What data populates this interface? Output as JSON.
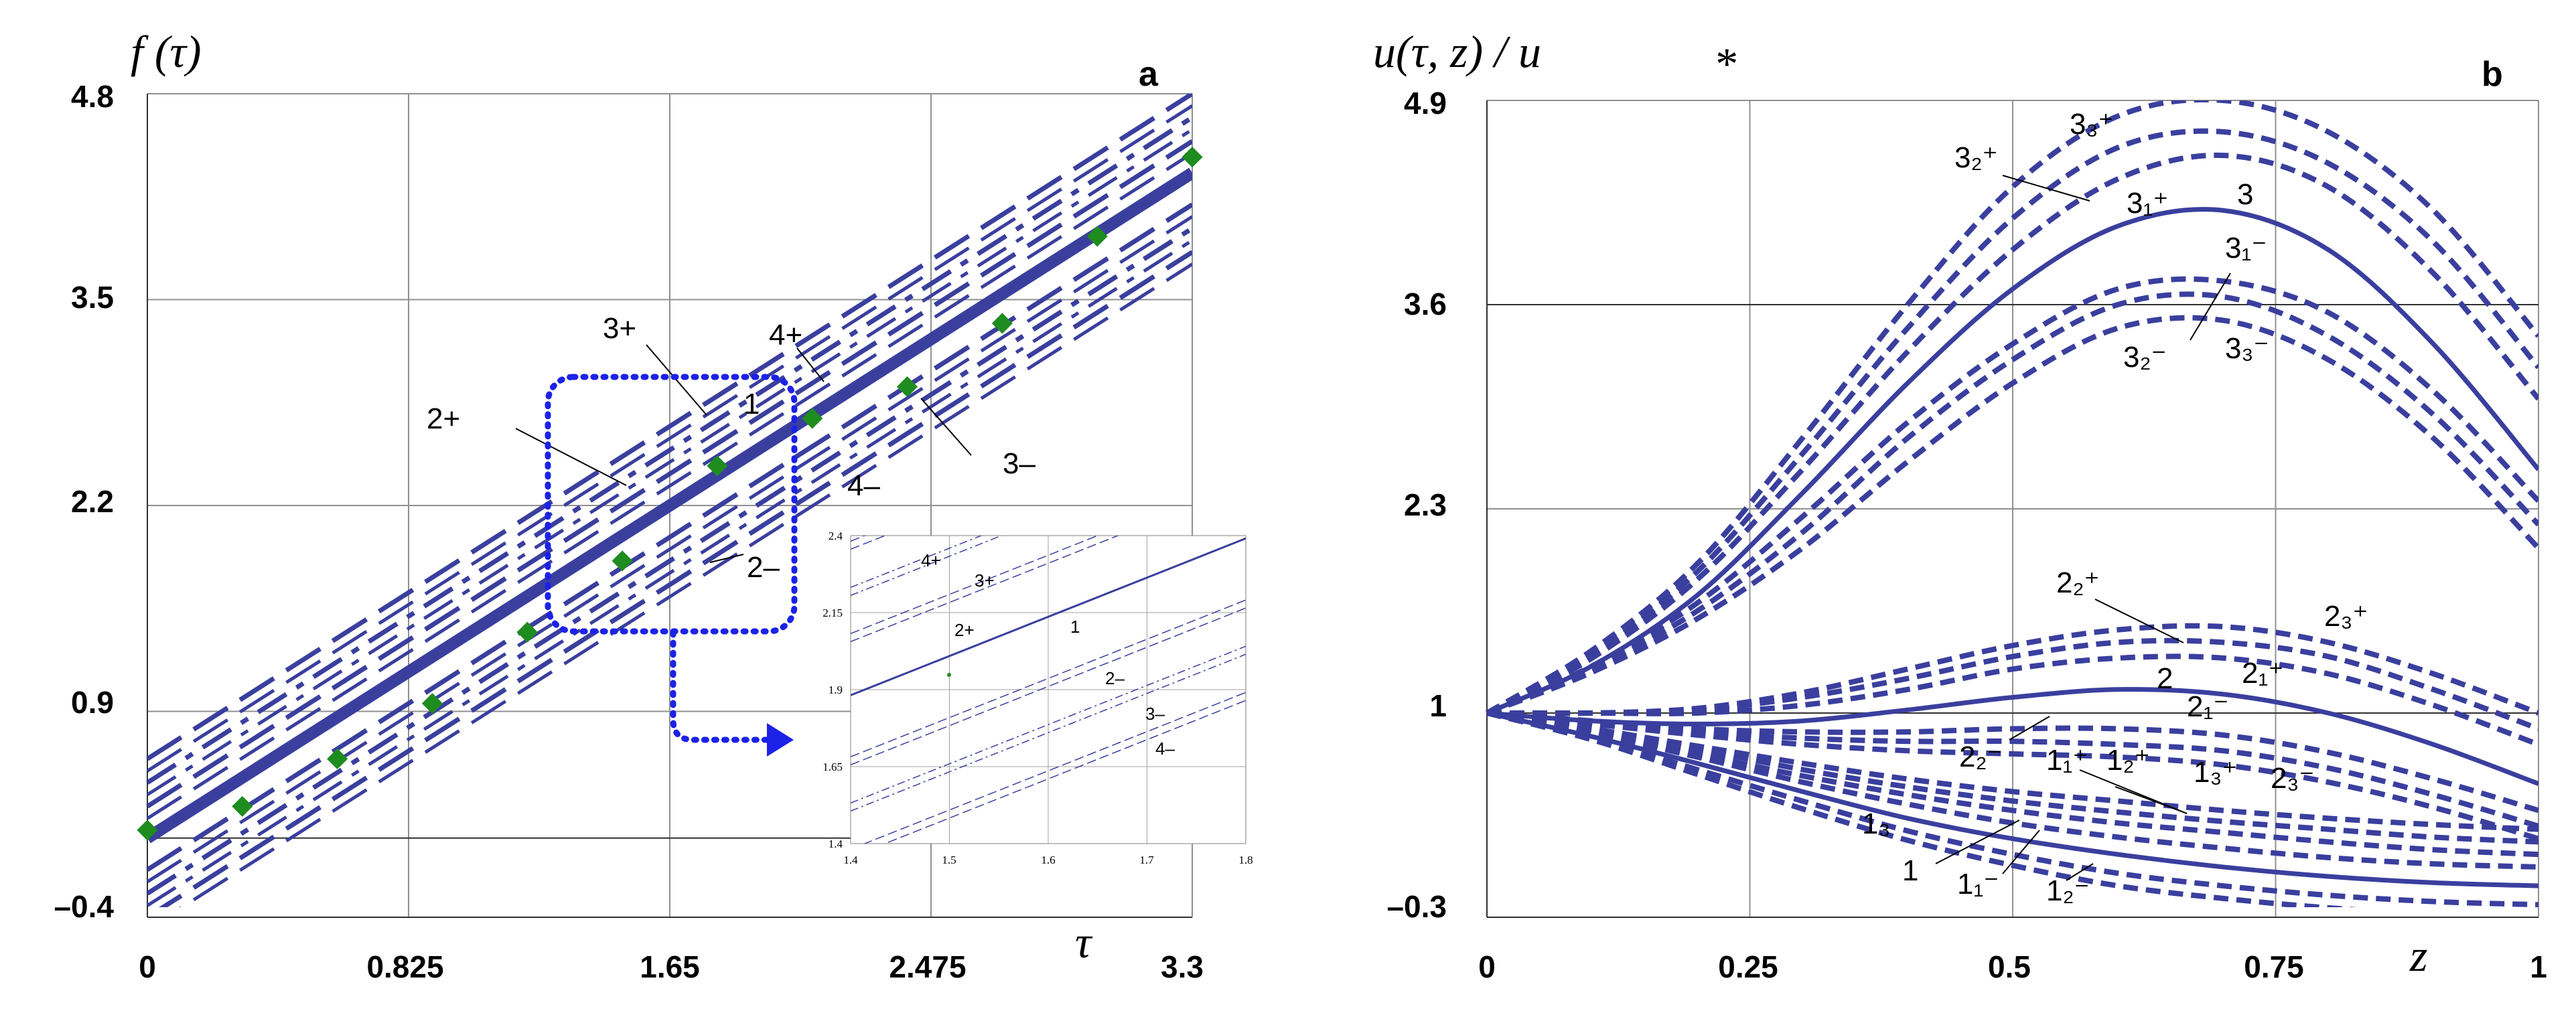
{
  "chart_data": [
    {
      "panel_label": "a",
      "type": "line",
      "title": "f (τ)",
      "xlabel": "τ",
      "x_ticks": [
        "0",
        "0.825",
        "1.65",
        "2.475",
        "3.3"
      ],
      "y_ticks": [
        "–0.4",
        "0.9",
        "2.2",
        "3.5",
        "4.8"
      ],
      "xlim": [
        0,
        3.3
      ],
      "ylim": [
        -0.4,
        4.8
      ],
      "grid": true,
      "series": [
        {
          "name": "1",
          "style": "solid-thick",
          "x": [
            0,
            3.3
          ],
          "y": [
            0.1,
            4.3
          ]
        },
        {
          "name": "2+",
          "style": "dashed",
          "x": [
            0,
            3.3
          ],
          "y": [
            0.3,
            4.5
          ]
        },
        {
          "name": "3+",
          "style": "dashdot",
          "x": [
            0,
            3.3
          ],
          "y": [
            0.45,
            4.65
          ]
        },
        {
          "name": "4+",
          "style": "dashed",
          "x": [
            0,
            3.3
          ],
          "y": [
            0.6,
            4.8
          ]
        },
        {
          "name": "2–",
          "style": "dashed",
          "x": [
            0,
            3.3
          ],
          "y": [
            -0.1,
            4.1
          ]
        },
        {
          "name": "3–",
          "style": "dashdot",
          "x": [
            0,
            3.3
          ],
          "y": [
            -0.25,
            3.95
          ]
        },
        {
          "name": "4–",
          "style": "dashed",
          "x": [
            0,
            3.3
          ],
          "y": [
            -0.4,
            3.8
          ]
        },
        {
          "name": "",
          "style": "markers",
          "x": [
            0,
            0.3,
            0.6,
            0.9,
            1.2,
            1.5,
            1.8,
            2.1,
            2.4,
            2.7,
            3.0,
            3.3
          ],
          "y": [
            0.15,
            0.3,
            0.6,
            0.95,
            1.4,
            1.85,
            2.45,
            2.75,
            2.95,
            3.35,
            3.9,
            4.4
          ]
        }
      ],
      "annotations": [
        "1",
        "2+",
        "3+",
        "4+",
        "2–",
        "3–",
        "4–"
      ],
      "inset": {
        "x_ticks": [
          "1.4",
          "1.5",
          "1.6",
          "1.7",
          "1.8"
        ],
        "y_ticks": [
          "1.4",
          "1.65",
          "1.9",
          "2.15",
          "2.4"
        ],
        "xlim": [
          1.4,
          1.8
        ],
        "ylim": [
          1.4,
          2.4
        ],
        "labels": [
          "4+",
          "3+",
          "2+",
          "1",
          "2–",
          "3–",
          "4–"
        ]
      }
    },
    {
      "panel_label": "b",
      "type": "line",
      "title": "u(τ, z) / u",
      "title_subscript": "*",
      "xlabel": "z",
      "x_ticks": [
        "0",
        "0.25",
        "0.5",
        "0.75",
        "1"
      ],
      "y_ticks": [
        "–0.3",
        "1",
        "2.3",
        "3.6",
        "4.9"
      ],
      "xlim": [
        0,
        1
      ],
      "ylim": [
        -0.3,
        4.9
      ],
      "grid": true,
      "x": [
        0,
        0.1,
        0.2,
        0.3,
        0.4,
        0.5,
        0.6,
        0.7,
        0.8,
        0.9,
        1.0
      ],
      "series": [
        {
          "name": "3",
          "style": "solid",
          "values": [
            1,
            1.3,
            1.75,
            2.4,
            3.1,
            3.7,
            4.1,
            4.2,
            3.95,
            3.35,
            2.55
          ]
        },
        {
          "name": "3₁⁺",
          "style": "dashed",
          "values": [
            1,
            1.35,
            1.85,
            2.55,
            3.3,
            3.95,
            4.4,
            4.55,
            4.35,
            3.8,
            3.0
          ]
        },
        {
          "name": "3₂⁺",
          "style": "dashed",
          "values": [
            1,
            1.37,
            1.9,
            2.65,
            3.45,
            4.15,
            4.6,
            4.7,
            4.5,
            4.0,
            3.2
          ]
        },
        {
          "name": "3₃⁺",
          "style": "dashed",
          "values": [
            1,
            1.4,
            1.95,
            2.75,
            3.6,
            4.35,
            4.8,
            4.9,
            4.7,
            4.2,
            3.4
          ]
        },
        {
          "name": "3₁⁻",
          "style": "dashed",
          "values": [
            1,
            1.3,
            1.7,
            2.25,
            2.85,
            3.35,
            3.7,
            3.75,
            3.55,
            3.05,
            2.35
          ]
        },
        {
          "name": "3₂⁻",
          "style": "dashed",
          "values": [
            1,
            1.28,
            1.65,
            2.15,
            2.75,
            3.25,
            3.6,
            3.65,
            3.4,
            2.9,
            2.2
          ]
        },
        {
          "name": "3₃⁻",
          "style": "dashed",
          "values": [
            1,
            1.26,
            1.6,
            2.05,
            2.6,
            3.1,
            3.45,
            3.5,
            3.25,
            2.75,
            2.05
          ]
        },
        {
          "name": "2",
          "style": "solid",
          "values": [
            1,
            0.95,
            0.93,
            0.95,
            1.02,
            1.1,
            1.15,
            1.12,
            1.0,
            0.8,
            0.55
          ]
        },
        {
          "name": "2₁⁺",
          "style": "dashed",
          "values": [
            1,
            1.0,
            1.0,
            1.05,
            1.15,
            1.28,
            1.35,
            1.35,
            1.25,
            1.05,
            0.8
          ]
        },
        {
          "name": "2₂⁺",
          "style": "dashed",
          "values": [
            1,
            1.0,
            1.02,
            1.1,
            1.22,
            1.36,
            1.45,
            1.45,
            1.36,
            1.15,
            0.9
          ]
        },
        {
          "name": "2₃⁺",
          "style": "dashed",
          "values": [
            1,
            1.0,
            1.03,
            1.13,
            1.28,
            1.43,
            1.53,
            1.55,
            1.45,
            1.25,
            1.0
          ]
        },
        {
          "name": "2₁⁻",
          "style": "dashed",
          "values": [
            1,
            0.95,
            0.9,
            0.88,
            0.88,
            0.9,
            0.9,
            0.86,
            0.75,
            0.58,
            0.38
          ]
        },
        {
          "name": "2₂⁻",
          "style": "dashed",
          "values": [
            1,
            0.94,
            0.88,
            0.84,
            0.82,
            0.82,
            0.8,
            0.76,
            0.65,
            0.48,
            0.28
          ]
        },
        {
          "name": "2₃⁻",
          "style": "dashed",
          "values": [
            1,
            0.93,
            0.86,
            0.8,
            0.76,
            0.74,
            0.72,
            0.67,
            0.56,
            0.4,
            0.2
          ]
        },
        {
          "name": "1",
          "style": "solid",
          "values": [
            1,
            0.85,
            0.68,
            0.5,
            0.33,
            0.2,
            0.1,
            0.02,
            -0.04,
            -0.08,
            -0.1
          ]
        },
        {
          "name": "1₁⁺",
          "style": "dashed",
          "values": [
            1,
            0.88,
            0.74,
            0.6,
            0.48,
            0.38,
            0.3,
            0.24,
            0.18,
            0.13,
            0.1
          ]
        },
        {
          "name": "1₂⁺",
          "style": "dashed",
          "values": [
            1,
            0.89,
            0.77,
            0.64,
            0.53,
            0.44,
            0.37,
            0.31,
            0.26,
            0.21,
            0.18
          ]
        },
        {
          "name": "1₃⁺",
          "style": "dashed",
          "values": [
            1,
            0.9,
            0.79,
            0.68,
            0.58,
            0.5,
            0.44,
            0.38,
            0.33,
            0.29,
            0.26
          ]
        },
        {
          "name": "1₃",
          "style": "dashed",
          "values": [
            1,
            0.87,
            0.72,
            0.56,
            0.42,
            0.3,
            0.21,
            0.14,
            0.08,
            0.04,
            0.02
          ]
        },
        {
          "name": "1₁⁻",
          "style": "dashed",
          "values": [
            1,
            0.84,
            0.64,
            0.44,
            0.25,
            0.1,
            -0.02,
            -0.1,
            -0.16,
            -0.2,
            -0.22
          ]
        },
        {
          "name": "1₂⁻",
          "style": "dashed",
          "values": [
            1,
            0.83,
            0.61,
            0.39,
            0.19,
            0.03,
            -0.1,
            -0.18,
            -0.24,
            -0.28,
            -0.3
          ]
        }
      ],
      "labels": {
        "c3": "3",
        "c3_1p": "3₁⁺",
        "c3_2p": "3₂⁺",
        "c3_3p": "3₃⁺",
        "c3_1m": "3₁⁻",
        "c3_2m": "3₂⁻",
        "c3_3m": "3₃⁻",
        "c2": "2",
        "c2_1p": "2₁⁺",
        "c2_2p": "2₂⁺",
        "c2_3p": "2₃⁺",
        "c2_1m": "2₁⁻",
        "c2_2m": "2₂⁻",
        "c2_3m": "2₃⁻",
        "c1": "1",
        "c1_1p": "1₁⁺",
        "c1_2p": "1₂⁺",
        "c1_3p": "1₃⁺",
        "c1_3": "1₃",
        "c1_1m": "1₁⁻",
        "c1_2m": "1₂⁻"
      }
    }
  ],
  "colors": {
    "line": "#3a3f9e",
    "marker": "#1e8c1e",
    "highlight": "#1b22e6"
  }
}
